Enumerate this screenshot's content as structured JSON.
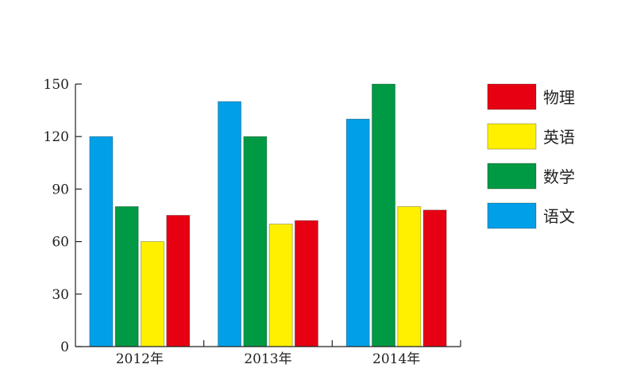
{
  "chart_data": {
    "type": "bar",
    "categories": [
      "2012年",
      "2013年",
      "2014年"
    ],
    "series": [
      {
        "name": "语文",
        "color": "#00a0e9",
        "values": [
          120,
          140,
          130
        ]
      },
      {
        "name": "数学",
        "color": "#009944",
        "values": [
          80,
          120,
          150
        ]
      },
      {
        "name": "英语",
        "color": "#fff000",
        "values": [
          60,
          70,
          80
        ]
      },
      {
        "name": "物理",
        "color": "#e60012",
        "values": [
          75,
          72,
          78
        ]
      }
    ],
    "y_ticks": [
      "0",
      "30",
      "60",
      "90",
      "120",
      "150"
    ],
    "ylim": [
      0,
      150
    ],
    "grid": false,
    "legend_position": "right",
    "legend_order": [
      "物理",
      "英语",
      "数学",
      "语文"
    ]
  }
}
